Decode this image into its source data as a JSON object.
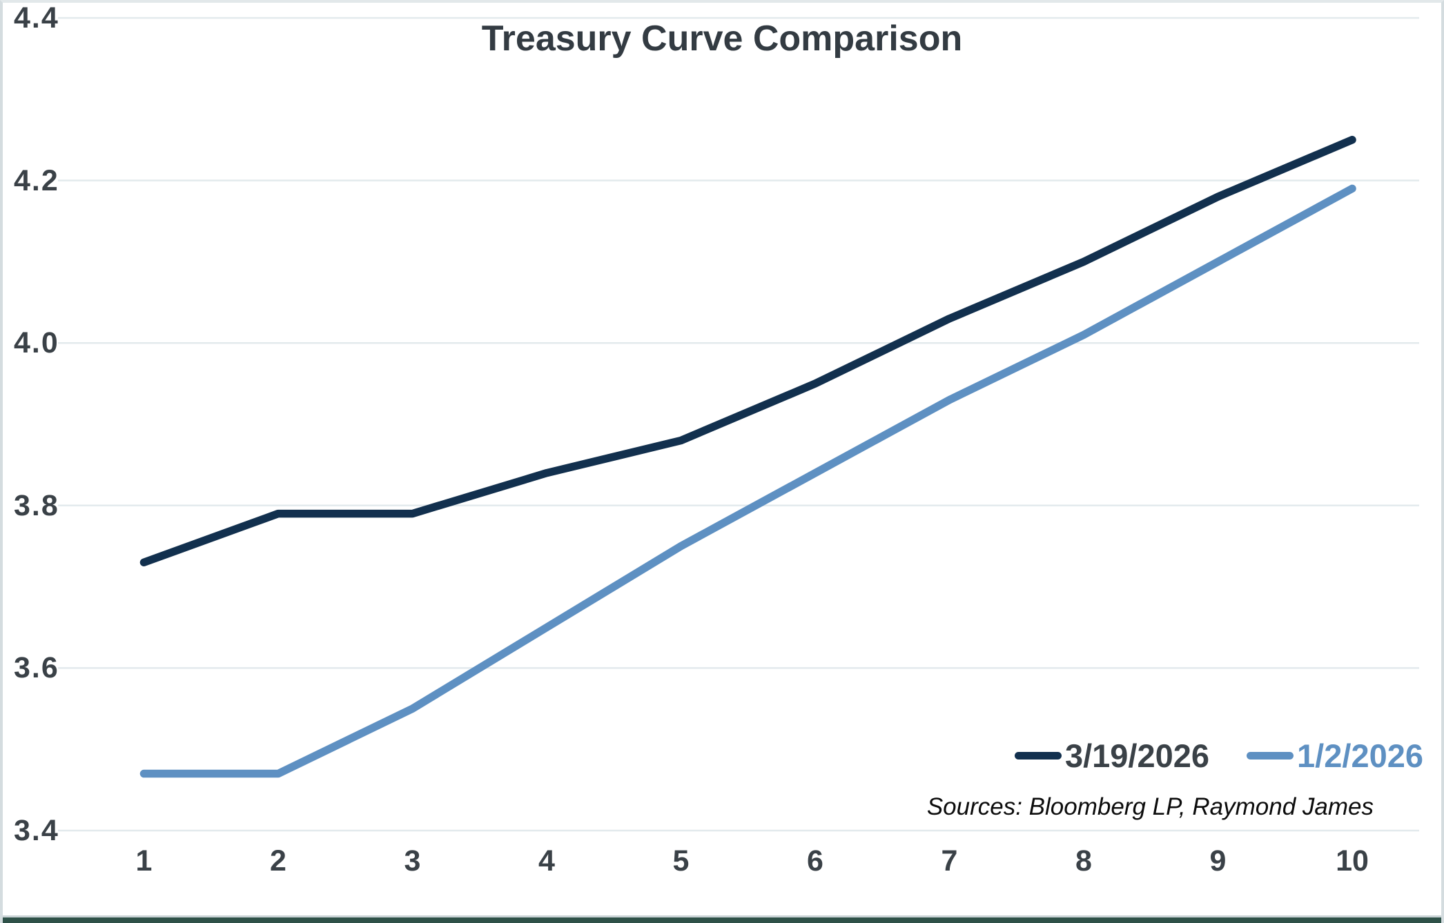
{
  "chart_data": {
    "type": "line",
    "title": "Treasury Curve Comparison",
    "categories": [
      "1",
      "2",
      "3",
      "4",
      "5",
      "6",
      "7",
      "8",
      "9",
      "10"
    ],
    "series": [
      {
        "name": "3/19/2026",
        "color": "#12304e",
        "values": [
          3.73,
          3.79,
          3.79,
          3.84,
          3.88,
          3.95,
          4.03,
          4.1,
          4.18,
          4.25
        ]
      },
      {
        "name": "1/2/2026",
        "color": "#5e90c2",
        "values": [
          3.47,
          3.47,
          3.55,
          3.65,
          3.75,
          3.84,
          3.93,
          4.01,
          4.1,
          4.19
        ]
      }
    ],
    "xlabel": "",
    "ylabel": "",
    "ylim": [
      3.4,
      4.4
    ],
    "yticks": [
      4.4,
      4.2,
      4.0,
      3.8,
      3.6,
      3.4
    ],
    "ytick_labels": [
      "4.4",
      "4.2",
      "4.0",
      "3.8",
      "3.6",
      "3.4"
    ],
    "grid": "horizontal",
    "legend_position": "inside-bottom-right"
  },
  "legend": {
    "items": [
      {
        "label": "3/19/2026",
        "swatch_color": "#12304e",
        "text_color": "#3a4147"
      },
      {
        "label": "1/2/2026",
        "swatch_color": "#5e90c2",
        "text_color": "#5e90c2"
      }
    ]
  },
  "sources_note": "Sources: Bloomberg LP, Raymond James",
  "colors": {
    "grid": "#e3eaed",
    "axis_text": "#3a4147",
    "title_text": "#333b42",
    "background": "#ffffff",
    "bottom_bar": "#2e5148"
  }
}
